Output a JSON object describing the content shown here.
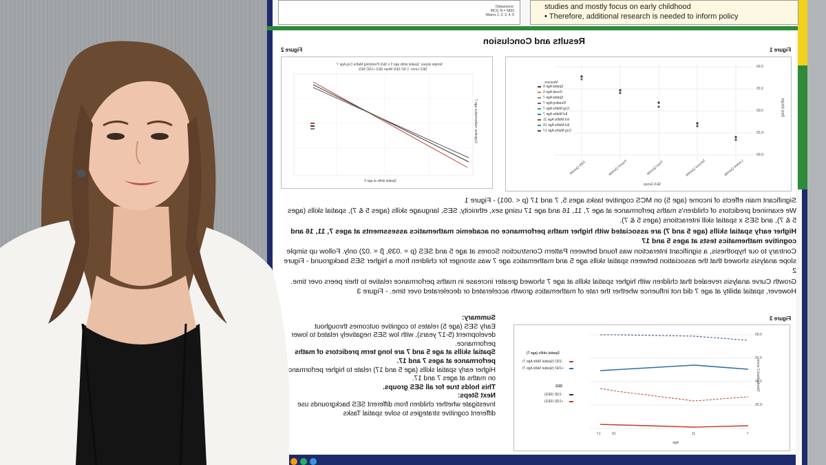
{
  "poster": {
    "top_left_box_lines": [
      "Datasource:",
      "MCS, N = 5833",
      "Waves 1, 2, 3, 4, 6"
    ],
    "top_right_box_lines": [
      "studies and mostly focus on early childhood",
      "Therefore, additional research is needed to inform policy"
    ],
    "section_title": "Results and Conclusion",
    "figure_labels": {
      "fig1": "Figure 1",
      "fig2": "Figure 2",
      "fig3": "Figure 3"
    },
    "fig1": {
      "ylabel": "Beta Weight",
      "xlabel": "SES Group",
      "y_ticks": [
        "0.50",
        "0.25",
        "0.00",
        "-0.25",
        "-0.50"
      ],
      "x_ticks": [
        "Lowest Quintile",
        "Second Quintile",
        "Third Quintile",
        "Fourth Quintile",
        "Fifth Quintile"
      ],
      "legend_title": "Measure",
      "legend": [
        "Spatial Age 5",
        "Vocab Age 5",
        "Spatial Age 7",
        "Reading Age 7",
        "Cog Maths Age 7",
        "Ed Maths Age 7",
        "Ed Maths Age 11",
        "Ed Maths Age 16",
        "Cog Maths Age 17"
      ]
    },
    "fig2": {
      "title": "Simple slopes: Spatial skills age 5 x SES Predicting Maths Cog Age 7",
      "legend_title": "SES Level",
      "legend": [
        "-1 SD SES",
        "Mean SES",
        "+1SD SES"
      ],
      "xlabel": "Spatial skills at age 5",
      "ylabel": "Cognitive mathematics age 7"
    },
    "fig3": {
      "ylabel": "Standardised Z score",
      "xlabel": "Age",
      "y_ticks": [
        "0.50",
        "0.25",
        "0.00",
        "-0.25"
      ],
      "x_ticks": [
        "7",
        "11",
        "16",
        "17"
      ],
      "legend_spatial_title": "Spatial skills (age 7)",
      "legend_spatial": [
        "-1SD (Spatial Skills Age 7)",
        "+1SD (Spatial Skills Age 7)"
      ],
      "legend_ses_title": "SES",
      "legend_ses": [
        "-1SD (SES)",
        "+1SD (SES)"
      ]
    },
    "results_paragraphs": [
      "Significant main effects of income (age 5) on MCS cognitive tasks ages 5, 7 and 17 (p < .001) - Figure 1",
      "We examined predictors of children's maths performance at age 7, 11, 16 and age 17 using sex, ethnicity, SES, language skills (ages 5 & 7), spatial skills (ages 5 & 7), and SES x spatial skill interactions (ages 5 & 7).",
      "Higher early spatial skills (age 5 and 7) are associated with higher maths performance on academic mathematics assessments at ages 7, 11, 16 and cognitive mathematics tests at ages 5 and 17",
      "Contrary to our hypothesis, a significant interaction was found between Pattern Construction Scores at age 5 and SES (p = .039, β = .02) only. Follow up simple slope analysis showed that the association between spatial skills age 5 and mathematics age 7 was stronger for children from a higher SES background - Figure 2",
      "Growth Curve analysis revealed that children with higher spatial skills at age 7 showed greater increase in maths performance relative to their peers over time. However, spatial ability at age 7 did not influence whether the rate of mathematics growth accelerated or decelerated over time. - Figure 3"
    ],
    "summary_heading": "Summary:",
    "summary_items": [
      "Early SES (age 5) relates to cognitive outcomes throughout development (5-17 years), with low SES negatively related to lower performance.",
      "Spatial skills at age 5 and 7 are long term predictors of maths performance at ages 7 and 17.",
      "Higher early spatial skills (age 5 and 17) relate to higher performance on maths at ages 7 and 17.",
      "This holds true for all SES groups."
    ],
    "next_steps_heading": "Next Steps:",
    "next_steps_items": [
      "Investigate whether children from different SES backgrounds use different cognitive strategies to solve spatial Tasks"
    ]
  },
  "colors": {
    "poster_border": "#1d2a6b",
    "green_strip": "#2e8b3a",
    "yellow_strip": "#f2d21c",
    "wall": "#a3a7aa",
    "hair": "#6b4a32",
    "jacket": "#f4f3f0",
    "top": "#141414"
  }
}
